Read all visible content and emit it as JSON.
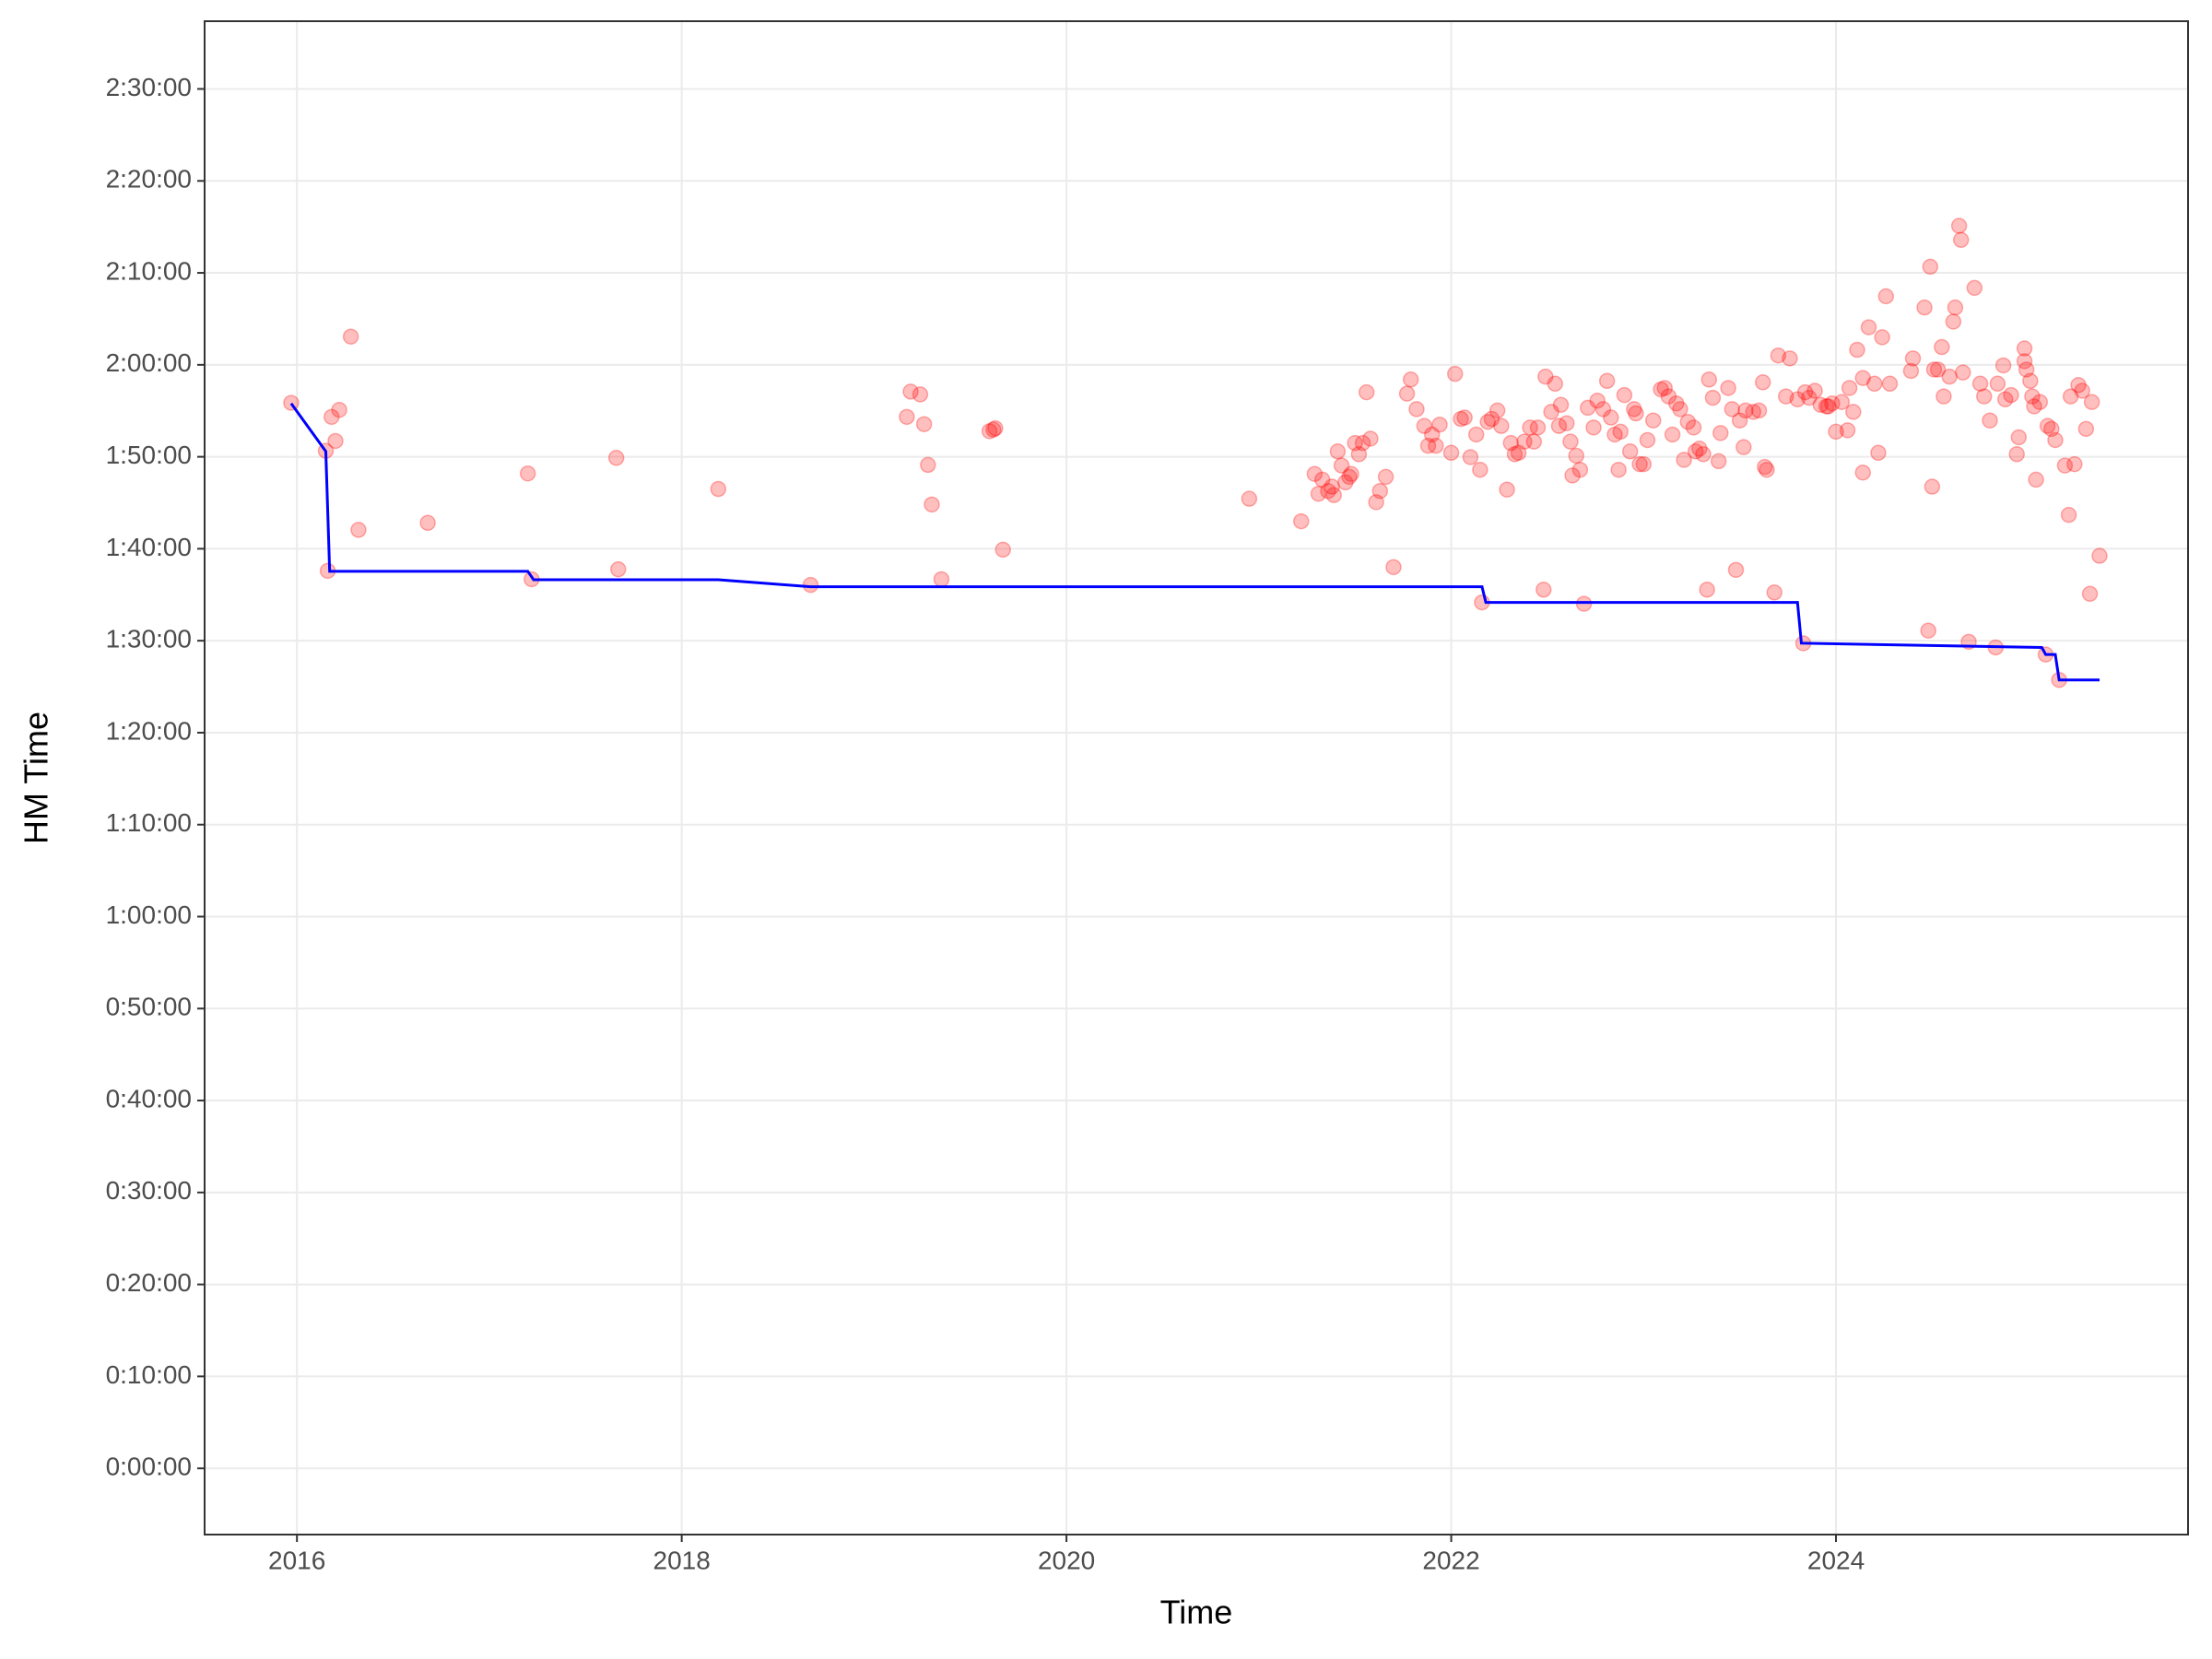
{
  "chart_data": {
    "type": "scatter",
    "x_label": "Time",
    "y_label": "HM Time",
    "xlim": [
      2015.52,
      2025.83
    ],
    "ylim": [
      -432,
      9442
    ],
    "xticks": [
      2016,
      2018,
      2020,
      2022,
      2024
    ],
    "yticks": [
      {
        "value": 0,
        "label": "0:00:00"
      },
      {
        "value": 600,
        "label": "0:10:00"
      },
      {
        "value": 1200,
        "label": "0:20:00"
      },
      {
        "value": 1800,
        "label": "0:30:00"
      },
      {
        "value": 2400,
        "label": "0:40:00"
      },
      {
        "value": 3000,
        "label": "0:50:00"
      },
      {
        "value": 3600,
        "label": "1:00:00"
      },
      {
        "value": 4200,
        "label": "1:10:00"
      },
      {
        "value": 4800,
        "label": "1:20:00"
      },
      {
        "value": 5400,
        "label": "1:30:00"
      },
      {
        "value": 6000,
        "label": "1:40:00"
      },
      {
        "value": 6600,
        "label": "1:50:00"
      },
      {
        "value": 7200,
        "label": "2:00:00"
      },
      {
        "value": 7800,
        "label": "2:10:00"
      },
      {
        "value": 8400,
        "label": "2:20:00"
      },
      {
        "value": 9000,
        "label": "2:30:00"
      }
    ],
    "grid": true,
    "points": {
      "color": "#ff0000",
      "x": [
        2015.97,
        2016.15,
        2016.16,
        2016.18,
        2016.2,
        2016.22,
        2016.28,
        2016.32,
        2016.68,
        2017.2,
        2017.22,
        2017.66,
        2017.67,
        2018.19,
        2018.67,
        2019.17,
        2019.19,
        2019.24,
        2019.26,
        2019.28,
        2019.3,
        2019.35,
        2019.6,
        2019.62,
        2019.63,
        2019.67,
        2020.95,
        2021.22,
        2021.29,
        2021.31,
        2021.33,
        2021.36,
        2021.38,
        2021.39,
        2021.41,
        2021.43,
        2021.45,
        2021.47,
        2021.48,
        2021.5,
        2021.52,
        2021.54,
        2021.56,
        2021.58,
        2021.61,
        2021.63,
        2021.66,
        2021.7,
        2021.77,
        2021.79,
        2021.82,
        2021.86,
        2021.88,
        2021.9,
        2021.92,
        2021.94,
        2022.0,
        2022.02,
        2022.05,
        2022.07,
        2022.1,
        2022.13,
        2022.15,
        2022.16,
        2022.19,
        2022.21,
        2022.24,
        2022.26,
        2022.29,
        2022.31,
        2022.33,
        2022.35,
        2022.38,
        2022.41,
        2022.43,
        2022.45,
        2022.48,
        2022.49,
        2022.52,
        2022.54,
        2022.56,
        2022.57,
        2022.6,
        2022.62,
        2022.63,
        2022.65,
        2022.67,
        2022.69,
        2022.71,
        2022.74,
        2022.76,
        2022.79,
        2022.81,
        2022.83,
        2022.85,
        2022.87,
        2022.88,
        2022.9,
        2022.93,
        2022.95,
        2022.96,
        2022.98,
        2023.0,
        2023.02,
        2023.05,
        2023.09,
        2023.11,
        2023.13,
        2023.15,
        2023.17,
        2023.19,
        2023.21,
        2023.23,
        2023.26,
        2023.27,
        2023.29,
        2023.31,
        2023.33,
        2023.34,
        2023.36,
        2023.39,
        2023.4,
        2023.44,
        2023.46,
        2023.48,
        2023.5,
        2023.52,
        2023.53,
        2023.57,
        2023.6,
        2023.62,
        2023.63,
        2023.64,
        2023.68,
        2023.7,
        2023.74,
        2023.76,
        2023.8,
        2023.83,
        2023.84,
        2023.86,
        2023.89,
        2023.92,
        2023.95,
        2023.96,
        2023.98,
        2024.0,
        2024.03,
        2024.06,
        2024.07,
        2024.09,
        2024.11,
        2024.14,
        2024.14,
        2024.17,
        2024.2,
        2024.22,
        2024.24,
        2024.26,
        2024.28,
        2024.39,
        2024.4,
        2024.46,
        2024.48,
        2024.49,
        2024.5,
        2024.51,
        2024.53,
        2024.55,
        2024.56,
        2024.59,
        2024.61,
        2024.62,
        2024.64,
        2024.65,
        2024.66,
        2024.69,
        2024.72,
        2024.75,
        2024.77,
        2024.8,
        2024.83,
        2024.84,
        2024.87,
        2024.88,
        2024.91,
        2024.94,
        2024.95,
        2024.98,
        2024.98,
        2024.99,
        2025.01,
        2025.02,
        2025.03,
        2025.04,
        2025.06,
        2025.09,
        2025.1,
        2025.12,
        2025.14,
        2025.16,
        2025.19,
        2025.21,
        2025.22,
        2025.24,
        2025.26,
        2025.28,
        2025.3,
        2025.32,
        2025.33,
        2025.37
      ],
      "y": [
        6952,
        6639,
        5856,
        6860,
        6703,
        6906,
        7384,
        6123,
        6169,
        6491,
        5801,
        6593,
        5866,
        6390,
        5764,
        6860,
        7025,
        7007,
        6813,
        6547,
        6289,
        5801,
        6767,
        6777,
        6786,
        5994,
        6326,
        6179,
        6488,
        6359,
        6451,
        6377,
        6405,
        6350,
        6635,
        6543,
        6433,
        6469,
        6488,
        6690,
        6617,
        6690,
        7021,
        6718,
        6304,
        6377,
        6469,
        5880,
        7012,
        7104,
        6911,
        6801,
        6672,
        6745,
        6672,
        6810,
        6626,
        7141,
        6847,
        6856,
        6598,
        6745,
        6515,
        5650,
        6828,
        6847,
        6902,
        6801,
        6386,
        6690,
        6617,
        6626,
        6699,
        6791,
        6699,
        6791,
        5733,
        7123,
        6893,
        7077,
        6801,
        6939,
        6819,
        6699,
        6478,
        6607,
        6515,
        5641,
        6920,
        6791,
        6966,
        6911,
        7095,
        6856,
        6745,
        6515,
        6764,
        7003,
        6635,
        6911,
        6883,
        6552,
        6552,
        6709,
        6837,
        7040,
        7049,
        6994,
        6745,
        6948,
        6911,
        6580,
        6828,
        6791,
        6635,
        6653,
        6617,
        5733,
        7104,
        6985,
        6571,
        6755,
        7049,
        6911,
        5862,
        6837,
        6663,
        6902,
        6893,
        6902,
        7086,
        6534,
        6515,
        5715,
        7261,
        6994,
        7242,
        6975,
        5383,
        7021,
        6985,
        7031,
        6939,
        6929,
        6929,
        6948,
        6764,
        6957,
        6773,
        7049,
        6893,
        7298,
        6497,
        7114,
        7445,
        7077,
        6626,
        7380,
        7647,
        7077,
        7160,
        7242,
        7574,
        5466,
        7840,
        6405,
        7169,
        7169,
        7316,
        6994,
        7123,
        7482,
        7574,
        8107,
        8015,
        7150,
        5393,
        7702,
        7077,
        6994,
        6837,
        5356,
        7077,
        7196,
        6975,
        7003,
        6617,
        6727,
        7307,
        7224,
        7169,
        7095,
        6994,
        6929,
        6451,
        6957,
        5310,
        6801,
        6782,
        6709,
        5144,
        6543,
        6221,
        6994,
        6552,
        7068,
        7031,
        6782,
        5706,
        6957,
        5954
      ]
    },
    "line": {
      "color": "#0000ff",
      "x": [
        2015.97,
        2016.15,
        2016.17,
        2017.2,
        2017.23,
        2018.19,
        2018.67,
        2022.16,
        2022.18,
        2023.8,
        2023.82,
        2025.07,
        2025.09,
        2025.14,
        2025.16,
        2025.37
      ],
      "y": [
        6948,
        6635,
        5853,
        5853,
        5798,
        5798,
        5752,
        5752,
        5650,
        5650,
        5384,
        5356,
        5310,
        5310,
        5144,
        5144
      ]
    }
  }
}
